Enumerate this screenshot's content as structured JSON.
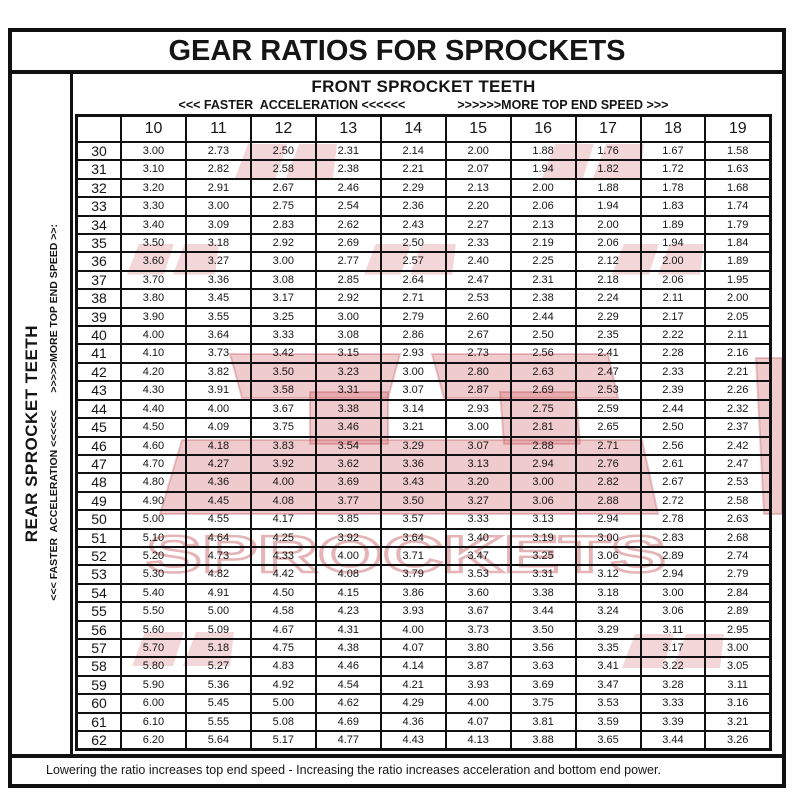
{
  "title": "GEAR RATIOS FOR SPROCKETS",
  "front_header": {
    "label": "FRONT SPROCKET TEETH",
    "faster_acceleration": "<<< FASTER  ACCELERATION <<<<<<",
    "more_top_end_speed": ">>>>>>MORE TOP END SPEED >>>"
  },
  "side_header": {
    "label": "REAR SPROCKET TEETH",
    "direction_label": "<<< FASTER  ACCELERATION <<<<<<      >>>>>MORE TOP END SPEED >>:"
  },
  "footer_note": "Lowering the ratio increases top end speed - Increasing the ratio increases acceleration and bottom end power.",
  "watermark": {
    "brand_word": "SPROCKETS",
    "color": "#c1272d"
  },
  "chart_data": {
    "type": "table",
    "title": "GEAR RATIOS FOR SPROCKETS",
    "columns_axis": "FRONT SPROCKET TEETH",
    "rows_axis": "REAR SPROCKET TEETH",
    "columns_annotation_left": "<<< FASTER  ACCELERATION <<<<<<",
    "columns_annotation_right": ">>>>>>MORE TOP END SPEED >>>",
    "rows_annotation": "<<< FASTER  ACCELERATION <<<<<<      >>>>>MORE TOP END SPEED >>:",
    "footer": "Lowering the ratio increases top end speed - Increasing the ratio increases acceleration and bottom end power.",
    "front_teeth": [
      "10",
      "11",
      "12",
      "13",
      "14",
      "15",
      "16",
      "17",
      "18",
      "19"
    ],
    "rear_teeth": [
      "30",
      "31",
      "32",
      "33",
      "34",
      "35",
      "36",
      "37",
      "38",
      "39",
      "40",
      "41",
      "42",
      "43",
      "44",
      "45",
      "46",
      "47",
      "48",
      "49",
      "50",
      "51",
      "52",
      "53",
      "54",
      "55",
      "56",
      "57",
      "58",
      "59",
      "60",
      "61",
      "62"
    ],
    "ratios": [
      [
        "3.00",
        "2.73",
        "2.50",
        "2.31",
        "2.14",
        "2.00",
        "1.88",
        "1.76",
        "1.67",
        "1.58"
      ],
      [
        "3.10",
        "2.82",
        "2.58",
        "2.38",
        "2.21",
        "2.07",
        "1.94",
        "1.82",
        "1.72",
        "1.63"
      ],
      [
        "3.20",
        "2.91",
        "2.67",
        "2.46",
        "2.29",
        "2.13",
        "2.00",
        "1.88",
        "1.78",
        "1.68"
      ],
      [
        "3.30",
        "3.00",
        "2.75",
        "2.54",
        "2.36",
        "2.20",
        "2.06",
        "1.94",
        "1.83",
        "1.74"
      ],
      [
        "3.40",
        "3.09",
        "2.83",
        "2.62",
        "2.43",
        "2.27",
        "2.13",
        "2.00",
        "1.89",
        "1.79"
      ],
      [
        "3.50",
        "3.18",
        "2.92",
        "2.69",
        "2.50",
        "2.33",
        "2.19",
        "2.06",
        "1.94",
        "1.84"
      ],
      [
        "3.60",
        "3.27",
        "3.00",
        "2.77",
        "2.57",
        "2.40",
        "2.25",
        "2.12",
        "2.00",
        "1.89"
      ],
      [
        "3.70",
        "3.36",
        "3.08",
        "2.85",
        "2.64",
        "2.47",
        "2.31",
        "2.18",
        "2.06",
        "1.95"
      ],
      [
        "3.80",
        "3.45",
        "3.17",
        "2.92",
        "2.71",
        "2.53",
        "2.38",
        "2.24",
        "2.11",
        "2.00"
      ],
      [
        "3.90",
        "3.55",
        "3.25",
        "3.00",
        "2.79",
        "2.60",
        "2.44",
        "2.29",
        "2.17",
        "2.05"
      ],
      [
        "4.00",
        "3.64",
        "3.33",
        "3.08",
        "2.86",
        "2.67",
        "2.50",
        "2.35",
        "2.22",
        "2.11"
      ],
      [
        "4.10",
        "3.73",
        "3.42",
        "3.15",
        "2.93",
        "2.73",
        "2.56",
        "2.41",
        "2.28",
        "2.16"
      ],
      [
        "4.20",
        "3.82",
        "3.50",
        "3.23",
        "3.00",
        "2.80",
        "2.63",
        "2.47",
        "2.33",
        "2.21"
      ],
      [
        "4.30",
        "3.91",
        "3.58",
        "3.31",
        "3.07",
        "2.87",
        "2.69",
        "2.53",
        "2.39",
        "2.26"
      ],
      [
        "4.40",
        "4.00",
        "3.67",
        "3.38",
        "3.14",
        "2.93",
        "2.75",
        "2.59",
        "2.44",
        "2.32"
      ],
      [
        "4.50",
        "4.09",
        "3.75",
        "3.46",
        "3.21",
        "3.00",
        "2.81",
        "2.65",
        "2.50",
        "2.37"
      ],
      [
        "4.60",
        "4.18",
        "3.83",
        "3.54",
        "3.29",
        "3.07",
        "2.88",
        "2.71",
        "2.56",
        "2.42"
      ],
      [
        "4.70",
        "4.27",
        "3.92",
        "3.62",
        "3.36",
        "3.13",
        "2.94",
        "2.76",
        "2.61",
        "2.47"
      ],
      [
        "4.80",
        "4.36",
        "4.00",
        "3.69",
        "3.43",
        "3.20",
        "3.00",
        "2.82",
        "2.67",
        "2.53"
      ],
      [
        "4.90",
        "4.45",
        "4.08",
        "3.77",
        "3.50",
        "3.27",
        "3.06",
        "2.88",
        "2.72",
        "2.58"
      ],
      [
        "5.00",
        "4.55",
        "4.17",
        "3.85",
        "3.57",
        "3.33",
        "3.13",
        "2.94",
        "2.78",
        "2.63"
      ],
      [
        "5.10",
        "4.64",
        "4.25",
        "3.92",
        "3.64",
        "3.40",
        "3.19",
        "3.00",
        "2.83",
        "2.68"
      ],
      [
        "5.20",
        "4.73",
        "4.33",
        "4.00",
        "3.71",
        "3.47",
        "3.25",
        "3.06",
        "2.89",
        "2.74"
      ],
      [
        "5.30",
        "4.82",
        "4.42",
        "4.08",
        "3.79",
        "3.53",
        "3.31",
        "3.12",
        "2.94",
        "2.79"
      ],
      [
        "5.40",
        "4.91",
        "4.50",
        "4.15",
        "3.86",
        "3.60",
        "3.38",
        "3.18",
        "3.00",
        "2.84"
      ],
      [
        "5.50",
        "5.00",
        "4.58",
        "4.23",
        "3.93",
        "3.67",
        "3.44",
        "3.24",
        "3.06",
        "2.89"
      ],
      [
        "5.60",
        "5.09",
        "4.67",
        "4.31",
        "4.00",
        "3.73",
        "3.50",
        "3.29",
        "3.11",
        "2.95"
      ],
      [
        "5.70",
        "5.18",
        "4.75",
        "4.38",
        "4.07",
        "3.80",
        "3.56",
        "3.35",
        "3.17",
        "3.00"
      ],
      [
        "5.80",
        "5.27",
        "4.83",
        "4.46",
        "4.14",
        "3.87",
        "3.63",
        "3.41",
        "3.22",
        "3.05"
      ],
      [
        "5.90",
        "5.36",
        "4.92",
        "4.54",
        "4.21",
        "3.93",
        "3.69",
        "3.47",
        "3.28",
        "3.11"
      ],
      [
        "6.00",
        "5.45",
        "5.00",
        "4.62",
        "4.29",
        "4.00",
        "3.75",
        "3.53",
        "3.33",
        "3.16"
      ],
      [
        "6.10",
        "5.55",
        "5.08",
        "4.69",
        "4.36",
        "4.07",
        "3.81",
        "3.59",
        "3.39",
        "3.21"
      ],
      [
        "6.20",
        "5.64",
        "5.17",
        "4.77",
        "4.43",
        "4.13",
        "3.88",
        "3.65",
        "3.44",
        "3.26"
      ]
    ]
  }
}
